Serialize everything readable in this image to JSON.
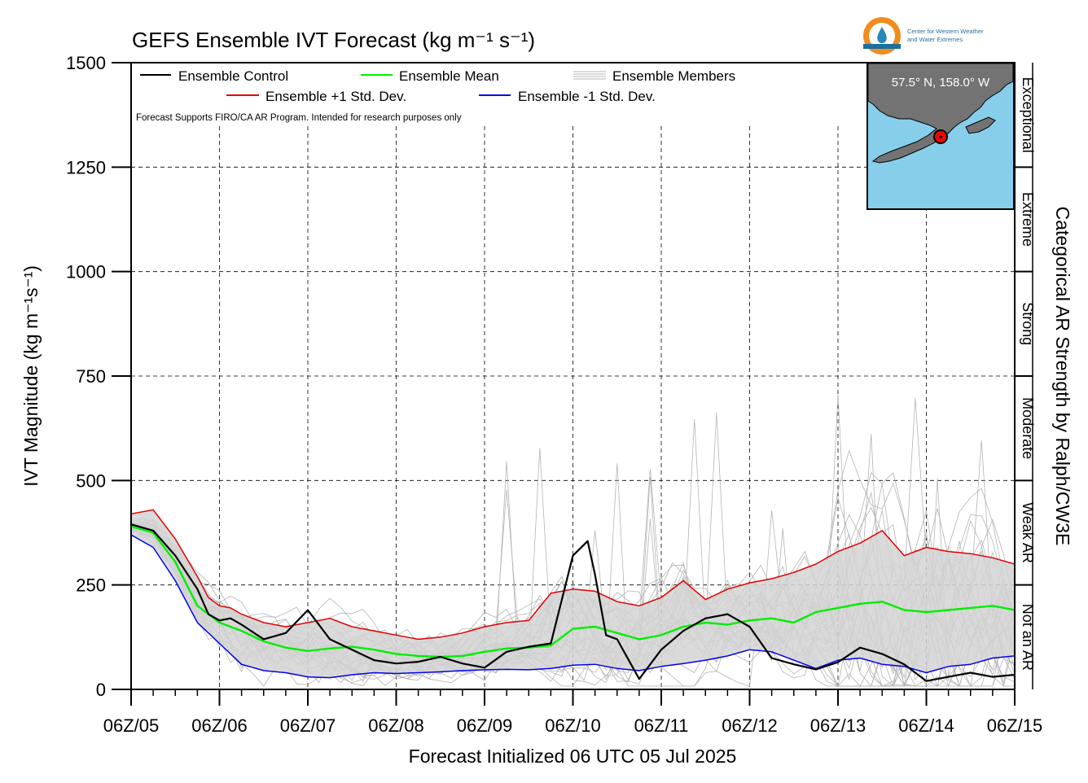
{
  "logo": {
    "line1": "Center for Western Weather",
    "line2": "and Water Extremes"
  },
  "inset": {
    "location_label": "57.5° N, 158.0° W"
  },
  "chart_data": {
    "type": "line",
    "title": "GEFS Ensemble IVT Forecast (kg m⁻¹ s⁻¹)",
    "xlabel": "Forecast Initialized 06 UTC 05 Jul 2025",
    "ylabel": "IVT Magnitude (kg m⁻¹s⁻¹)",
    "right_label": "Categorical AR Strength by Ralph/CW3E",
    "note": "Forecast Supports FIRO/CA AR Program. Intended for research purposes only",
    "ylim": [
      0,
      1500
    ],
    "xlim": [
      0,
      240
    ],
    "x_unit": "hours after 06Z/05",
    "y_ticks": [
      0,
      250,
      500,
      750,
      1000,
      1250,
      1500
    ],
    "x_tick_labels": [
      "06Z/05",
      "06Z/06",
      "06Z/07",
      "06Z/08",
      "06Z/09",
      "06Z/10",
      "06Z/11",
      "06Z/12",
      "06Z/13",
      "06Z/14",
      "06Z/15"
    ],
    "categories_ar": [
      {
        "label": "Not an AR",
        "from": 0,
        "to": 250
      },
      {
        "label": "Weak AR",
        "from": 250,
        "to": 500
      },
      {
        "label": "Moderate",
        "from": 500,
        "to": 750
      },
      {
        "label": "Strong",
        "from": 750,
        "to": 1000
      },
      {
        "label": "Extreme",
        "from": 1000,
        "to": 1250
      },
      {
        "label": "Exceptional",
        "from": 1250,
        "to": 1500
      }
    ],
    "legend": {
      "control": "Ensemble Control",
      "mean": "Ensemble Mean",
      "members": "Ensemble Members",
      "plus_std": "Ensemble +1 Std. Dev.",
      "minus_std": "Ensemble -1 Std. Dev."
    },
    "colors": {
      "control": "#000000",
      "mean": "#00ee00",
      "plus_std": "#e00000",
      "minus_std": "#0000ee",
      "members": "#b4b4b4",
      "spread": "#d3d3d3",
      "inset_water": "#87ceeb",
      "inset_land": "#737373",
      "marker": "#ff0000"
    },
    "grid": true,
    "series": [
      {
        "key": "control",
        "x": [
          0,
          6,
          12,
          18,
          21,
          24,
          27,
          30,
          36,
          42,
          48,
          54,
          60,
          66,
          72,
          78,
          84,
          90,
          96,
          102,
          108,
          114,
          120,
          124,
          126,
          129,
          132,
          138,
          144,
          150,
          156,
          162,
          168,
          174,
          180,
          186,
          192,
          198,
          204,
          210,
          216,
          222,
          228,
          234,
          240
        ],
        "values": [
          395,
          380,
          320,
          240,
          180,
          165,
          170,
          155,
          120,
          135,
          190,
          120,
          95,
          70,
          62,
          66,
          78,
          62,
          52,
          90,
          102,
          110,
          320,
          355,
          275,
          130,
          120,
          25,
          95,
          140,
          170,
          180,
          150,
          75,
          60,
          48,
          65,
          100,
          85,
          60,
          20,
          30,
          40,
          30,
          35
        ]
      },
      {
        "key": "mean",
        "x": [
          0,
          6,
          12,
          18,
          24,
          30,
          36,
          42,
          48,
          54,
          60,
          66,
          72,
          78,
          84,
          90,
          96,
          102,
          108,
          114,
          120,
          126,
          132,
          138,
          144,
          150,
          156,
          162,
          168,
          174,
          180,
          186,
          192,
          198,
          204,
          210,
          216,
          222,
          228,
          234,
          240
        ],
        "values": [
          390,
          375,
          305,
          200,
          160,
          140,
          115,
          100,
          92,
          98,
          102,
          95,
          85,
          80,
          78,
          80,
          90,
          98,
          100,
          105,
          145,
          150,
          135,
          120,
          130,
          150,
          160,
          155,
          165,
          170,
          160,
          185,
          195,
          205,
          210,
          190,
          185,
          190,
          195,
          200,
          190
        ]
      },
      {
        "key": "plus_std",
        "x": [
          0,
          6,
          12,
          18,
          21,
          24,
          27,
          30,
          36,
          42,
          48,
          54,
          60,
          66,
          72,
          78,
          84,
          90,
          96,
          102,
          108,
          114,
          120,
          126,
          132,
          138,
          144,
          150,
          156,
          162,
          168,
          174,
          180,
          186,
          192,
          198,
          204,
          210,
          216,
          222,
          228,
          234,
          240
        ],
        "values": [
          420,
          430,
          360,
          270,
          220,
          200,
          195,
          180,
          160,
          150,
          160,
          170,
          150,
          140,
          130,
          120,
          125,
          135,
          150,
          160,
          165,
          230,
          240,
          235,
          210,
          200,
          220,
          260,
          215,
          240,
          255,
          265,
          280,
          300,
          330,
          350,
          380,
          320,
          340,
          330,
          325,
          315,
          300
        ]
      },
      {
        "key": "minus_std",
        "x": [
          0,
          6,
          12,
          18,
          24,
          30,
          36,
          42,
          48,
          54,
          60,
          66,
          72,
          78,
          84,
          90,
          96,
          102,
          108,
          114,
          120,
          126,
          132,
          138,
          144,
          150,
          156,
          162,
          168,
          174,
          180,
          186,
          192,
          198,
          204,
          210,
          216,
          222,
          228,
          234,
          240
        ],
        "values": [
          370,
          340,
          260,
          160,
          110,
          60,
          45,
          40,
          30,
          28,
          35,
          40,
          38,
          40,
          42,
          45,
          47,
          48,
          47,
          50,
          58,
          60,
          50,
          45,
          55,
          62,
          70,
          80,
          95,
          90,
          70,
          50,
          70,
          75,
          60,
          55,
          40,
          55,
          60,
          75,
          80
        ]
      }
    ]
  }
}
